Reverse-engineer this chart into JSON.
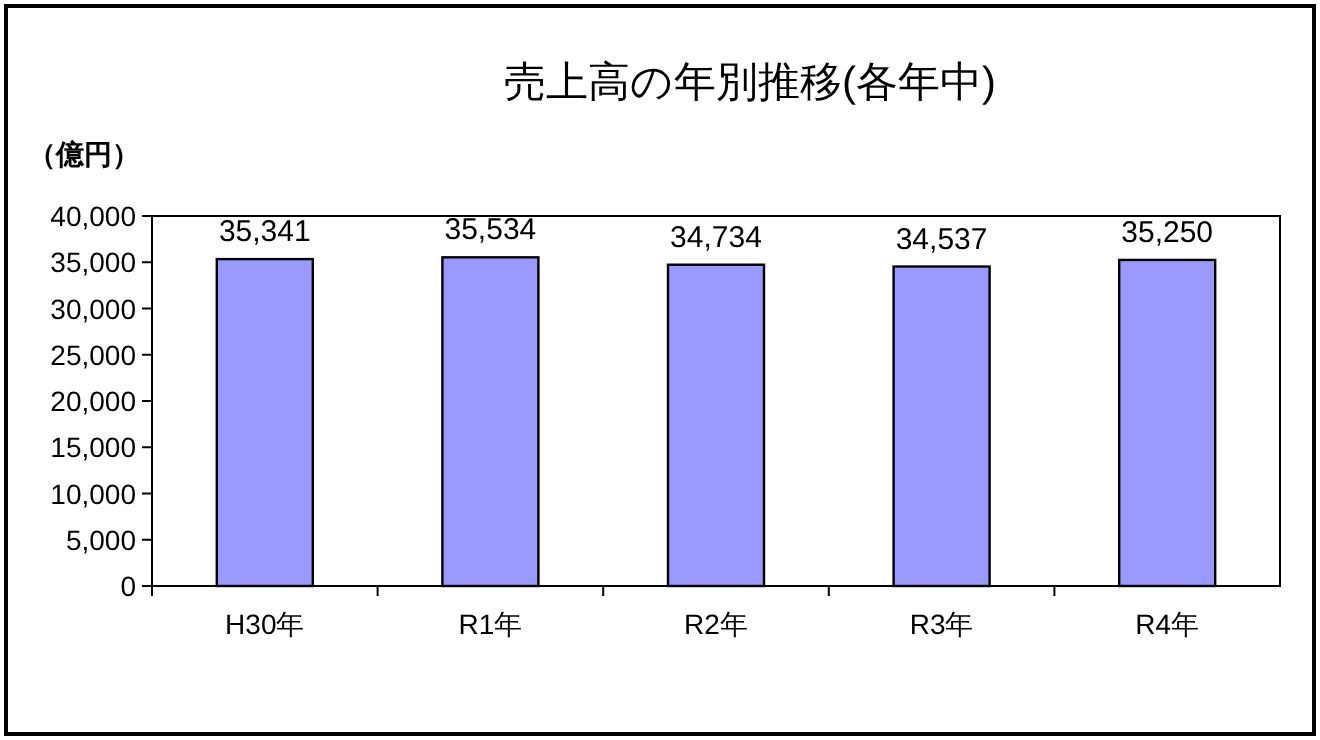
{
  "chart_data": {
    "type": "bar",
    "title": "売上高の年別推移(各年中)",
    "ylabel": "（億円）",
    "categories": [
      "H30年",
      "R1年",
      "R2年",
      "R3年",
      "R4年"
    ],
    "values": [
      35341,
      35534,
      34734,
      34537,
      35250
    ],
    "color": "#9999ff",
    "ylim": [
      0,
      40000
    ],
    "yticks": [
      0,
      {
        "value": 5000,
        "label": "5,000"
      },
      {
        "value": 10000,
        "label": "10,000"
      },
      {
        "value": 15000,
        "label": "15,000"
      },
      {
        "value": 20000,
        "label": "20,000"
      },
      {
        "value": 25000,
        "label": "25,000"
      },
      {
        "value": 30000,
        "label": "30,000"
      },
      {
        "value": 35000,
        "label": "35,000"
      },
      {
        "value": 40000,
        "label": "40,000"
      }
    ],
    "value_labels": [
      "35,341",
      "35,534",
      "34,734",
      "34,537",
      "35,250"
    ],
    "grid": false
  }
}
